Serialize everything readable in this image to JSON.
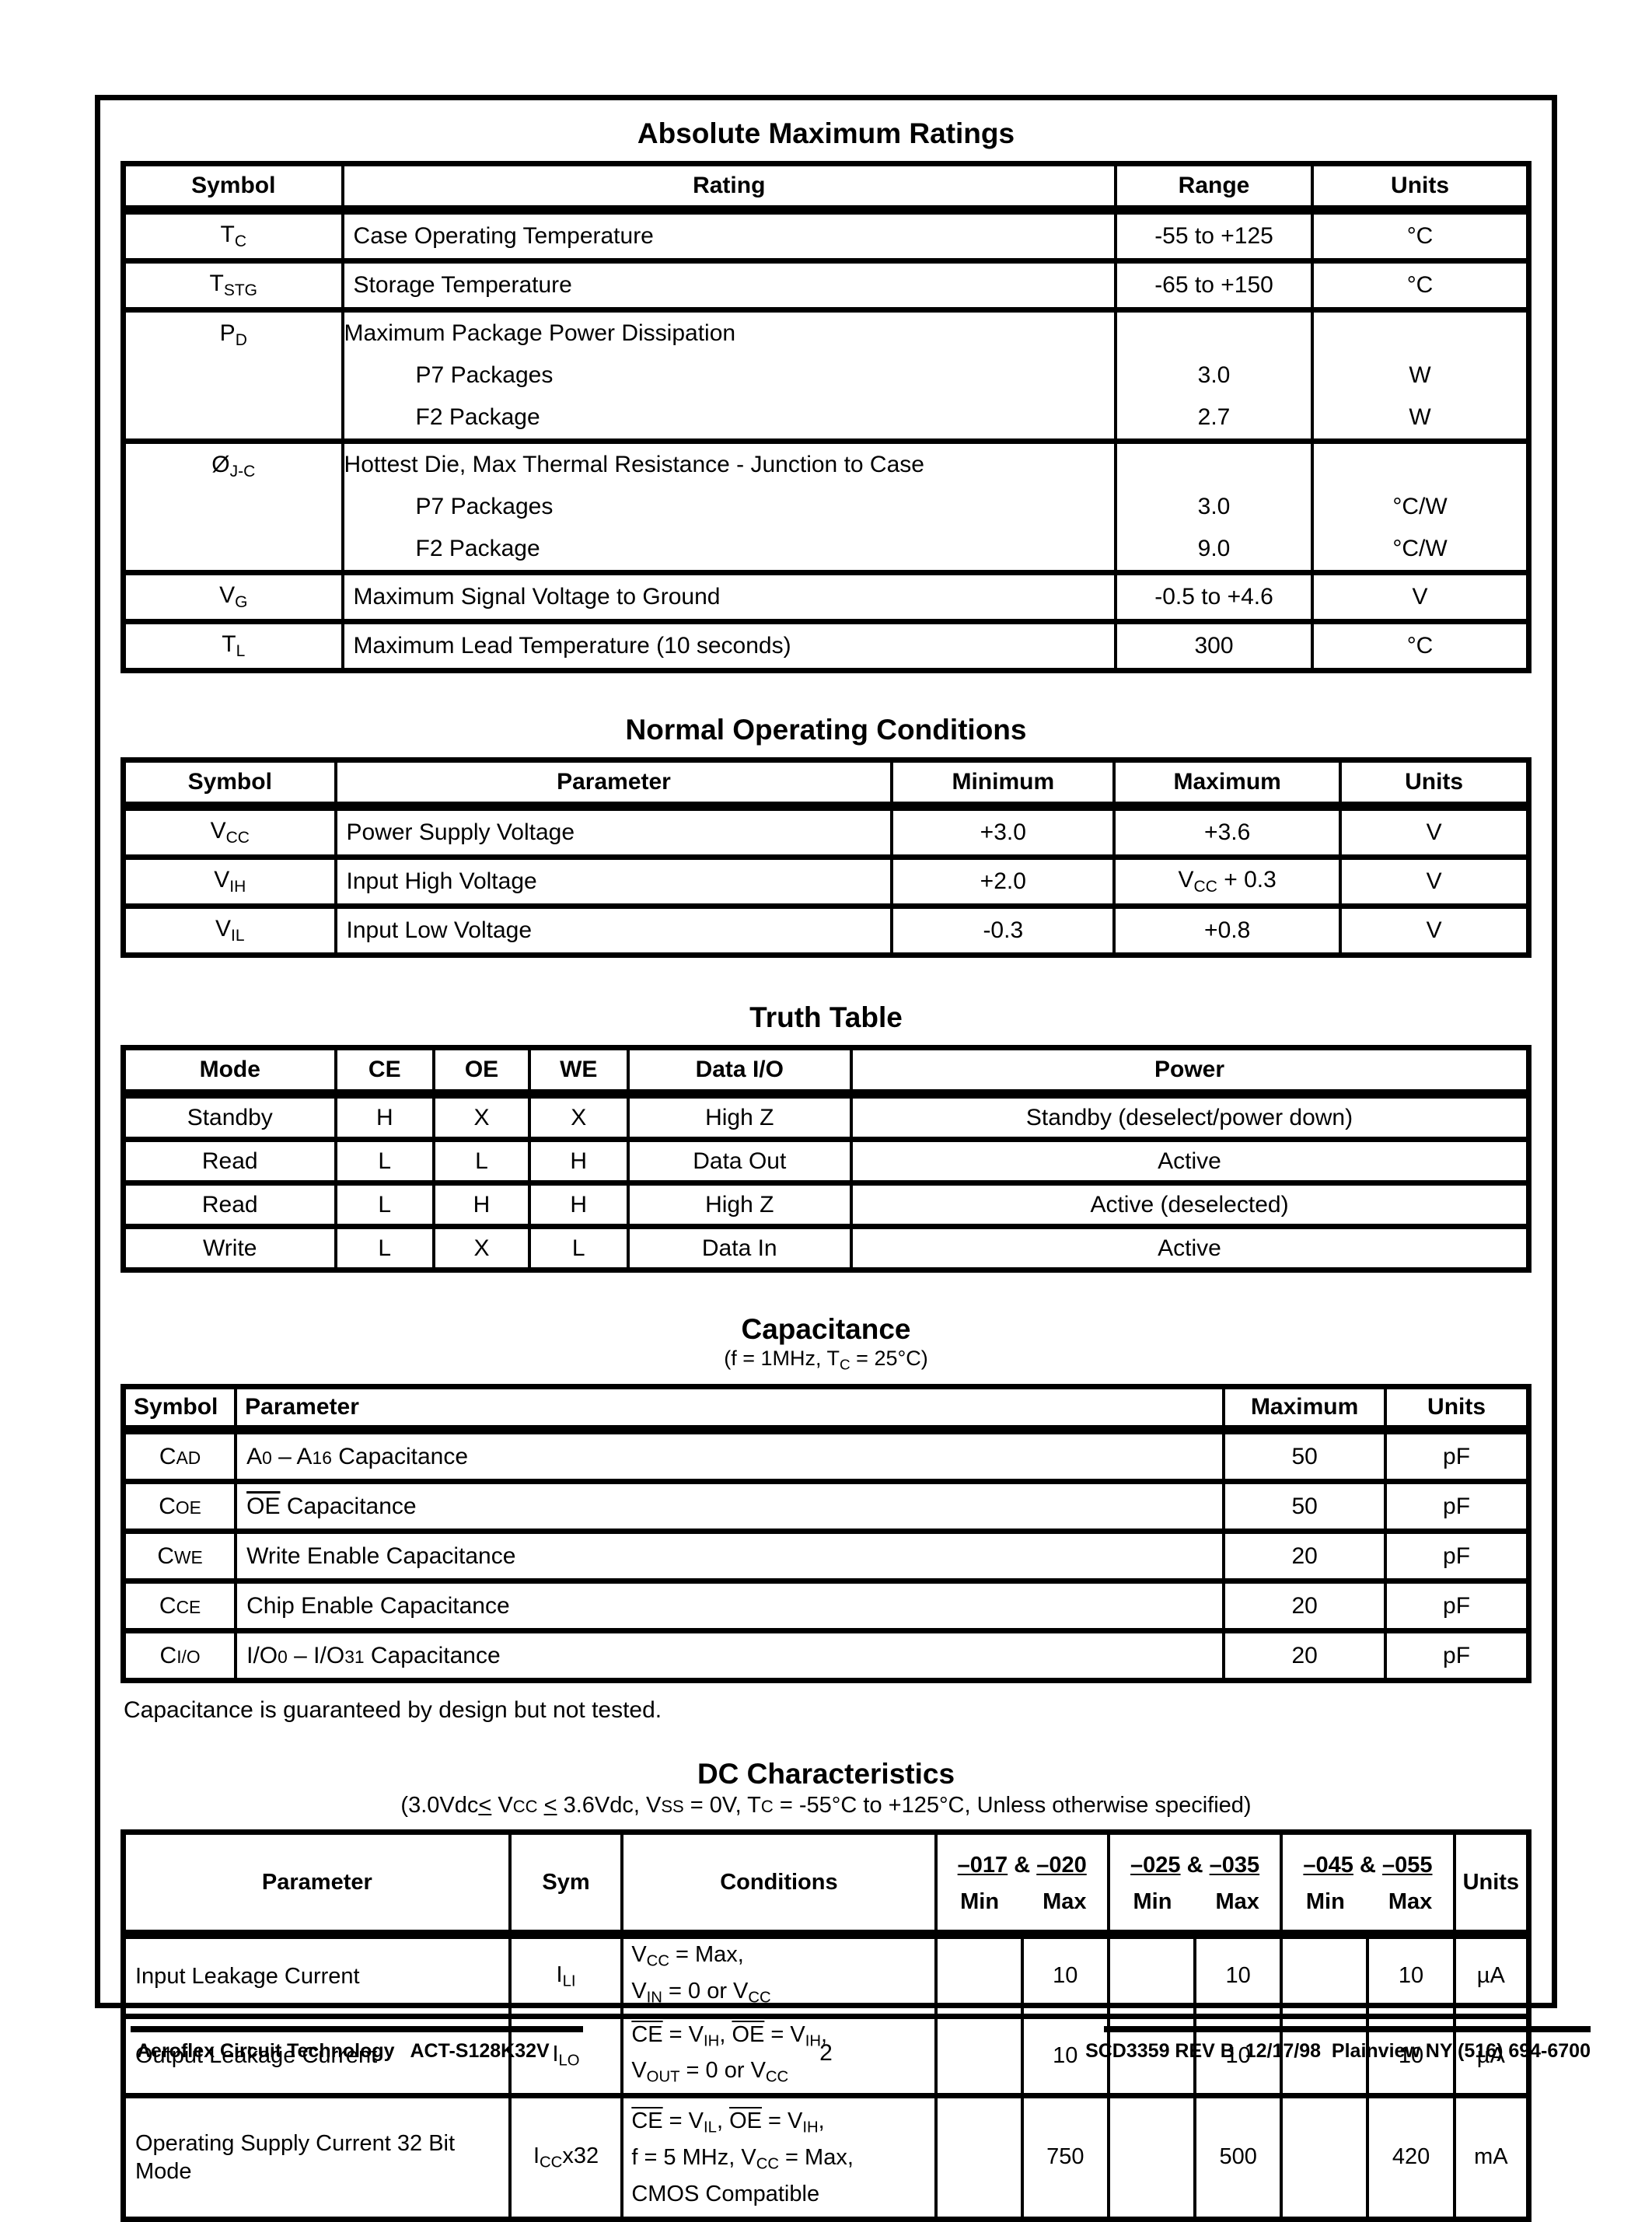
{
  "amr": {
    "title": "Absolute Maximum Ratings",
    "headers": [
      "Symbol",
      "Rating",
      "Range",
      "Units"
    ],
    "rows": [
      {
        "symbol": "T{sub:C}",
        "rating": "Case Operating Temperature",
        "range": "-55 to +125",
        "units": "°C"
      },
      {
        "symbol": "T{sub:STG}",
        "rating": "Storage Temperature",
        "range": "-65 to +150",
        "units": "°C"
      },
      {
        "symbol": "P{sub:D}",
        "rating": "Maximum Package Power Dissipation",
        "sub_rows": [
          {
            "rating": "P7 Packages",
            "range": "3.0",
            "units": "W"
          },
          {
            "rating": "F2 Package",
            "range": "2.7",
            "units": "W"
          }
        ]
      },
      {
        "symbol": "Ø{sub:J-C}",
        "rating": "Hottest Die, Max Thermal Resistance - Junction to Case",
        "sub_rows": [
          {
            "rating": "P7 Packages",
            "range": "3.0",
            "units": "°C/W"
          },
          {
            "rating": "F2 Package",
            "range": "9.0",
            "units": "°C/W"
          }
        ]
      },
      {
        "symbol": "V{sub:G}",
        "rating": "Maximum Signal Voltage to Ground",
        "range": "-0.5 to +4.6",
        "units": "V"
      },
      {
        "symbol": "T{sub:L}",
        "rating": "Maximum Lead Temperature (10 seconds)",
        "range": "300",
        "units": "°C"
      }
    ]
  },
  "noc": {
    "title": "Normal Operating Conditions",
    "headers": [
      "Symbol",
      "Parameter",
      "Minimum",
      "Maximum",
      "Units"
    ],
    "rows": [
      {
        "symbol": "V{sub:CC}",
        "parameter": "Power Supply Voltage",
        "minimum": "+3.0",
        "maximum": "+3.6",
        "units": "V"
      },
      {
        "symbol": "V{sub:IH}",
        "parameter": "Input High Voltage",
        "minimum": "+2.0",
        "maximum": "V{sub:CC} + 0.3",
        "units": "V"
      },
      {
        "symbol": "V{sub:IL}",
        "parameter": "Input Low Voltage",
        "minimum": "-0.3",
        "maximum": "+0.8",
        "units": "V"
      }
    ]
  },
  "tt": {
    "title": "Truth Table",
    "headers": [
      "Mode",
      "CE",
      "OE",
      "WE",
      "Data I/O",
      "Power"
    ],
    "rows": [
      [
        "Standby",
        "H",
        "X",
        "X",
        "High Z",
        "Standby (deselect/power down)"
      ],
      [
        "Read",
        "L",
        "L",
        "H",
        "Data Out",
        "Active"
      ],
      [
        "Read",
        "L",
        "H",
        "H",
        "High Z",
        "Active (deselected)"
      ],
      [
        "Write",
        "L",
        "X",
        "L",
        "Data In",
        "Active"
      ]
    ]
  },
  "cap": {
    "title": "Capacitance",
    "subtitle": "(f = 1MHz, T{sub:C} = 25°C)",
    "headers": [
      "Symbol",
      "Parameter",
      "Maximum",
      "Units"
    ],
    "rows": [
      {
        "symbol": "C{sc:AD}",
        "parameter": "A{sc:0} – A{sc:16} Capacitance",
        "maximum": "50",
        "units": "pF"
      },
      {
        "symbol": "C{sc:OE}",
        "parameter": "{over:OE} Capacitance",
        "maximum": "50",
        "units": "pF"
      },
      {
        "symbol": "C{sc:WE}",
        "parameter": "Write Enable Capacitance",
        "maximum": "20",
        "units": "pF"
      },
      {
        "symbol": "C{sc:CE}",
        "parameter": "Chip Enable Capacitance",
        "maximum": "20",
        "units": "pF"
      },
      {
        "symbol": "C{sc:I/O}",
        "parameter": "I/O{sc:0} – I/O{sc:31} Capacitance",
        "maximum": "20",
        "units": "pF"
      }
    ],
    "note": "Capacitance is guaranteed by design but not tested."
  },
  "dc": {
    "title": "DC Characteristics",
    "subtitle": "(3.0Vdc{u:<} V{sc:CC} {u:<} 3.6Vdc, V{sc:SS} = 0V, T{sc:C} = -55°C to +125°C, Unless otherwise specified)",
    "headers": {
      "parameter": "Parameter",
      "sym": "Sym",
      "conditions": "Conditions",
      "groups": [
        "{u:–017} & {u:–020}",
        "{u:–025} & {u:–035}",
        "{u:–045} & {u:–055}"
      ],
      "min": "Min",
      "max": "Max",
      "units": "Units"
    },
    "rows": [
      {
        "parameter": "Input Leakage Current",
        "sym": "I{sub:LI}",
        "conditions": "V{sub:CC} = Max,\nV{sub:IN} = 0 or V{sub:CC}",
        "min1": "",
        "max1": "10",
        "min2": "",
        "max2": "10",
        "min3": "",
        "max3": "10",
        "units": "µA"
      },
      {
        "parameter": "Output Leakage Current",
        "sym": "I{sub:LO}",
        "conditions": "{over:CE} = V{sub:IH}, {over:OE} = V{sub:IH},\nV{sub:OUT} = 0 or V{sub:CC}",
        "min1": "",
        "max1": "10",
        "min2": "",
        "max2": "10",
        "min3": "",
        "max3": "10",
        "units": "µA"
      },
      {
        "parameter": "Operating Supply Current 32 Bit Mode",
        "sym": "I{sub:CC}x32",
        "conditions": "{over:CE} = V{sub:IL}, {over:OE} = V{sub:IH},\nf = 5 MHz, V{sub:CC} = Max,\nCMOS Compatible",
        "min1": "",
        "max1": "750",
        "min2": "",
        "max2": "500",
        "min3": "",
        "max3": "420",
        "units": "mA"
      }
    ]
  },
  "footer": {
    "left": "Aeroflex Circuit Technology   ACT-S128K32V",
    "page_number": "2",
    "right": "SCD3359 REV B  12/17/98  Plainview NY (516) 694-6700"
  }
}
